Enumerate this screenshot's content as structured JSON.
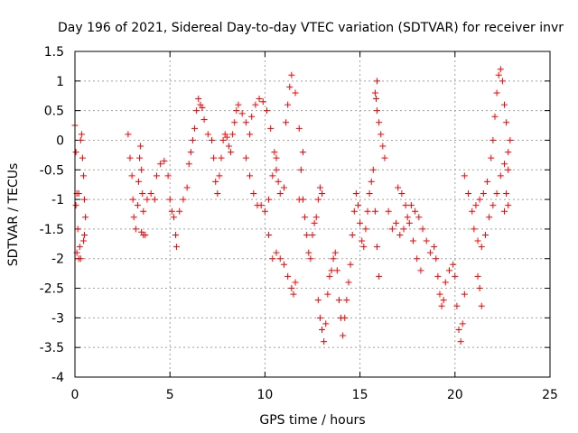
{
  "chart_data": {
    "type": "scatter",
    "title": "Day 196 of 2021, Sidereal Day-to-day VTEC variation (SDTVAR) for receiver invr",
    "xlabel": "GPS time / hours",
    "ylabel": "SDTVAR / TECUs",
    "xlim": [
      0,
      25
    ],
    "ylim": [
      -4,
      1.5
    ],
    "xticks": [
      0,
      5,
      10,
      15,
      20,
      25
    ],
    "yticks": [
      -4,
      -3.5,
      -3,
      -2.5,
      -2,
      -1.5,
      -1,
      -0.5,
      0,
      0.5,
      1,
      1.5
    ],
    "grid": true,
    "marker": "+",
    "color": "#ff0000",
    "series": [
      {
        "points": [
          [
            0.0,
            0.25
          ],
          [
            0.05,
            -0.2
          ],
          [
            0.1,
            -0.9
          ],
          [
            0.15,
            -1.5
          ],
          [
            0.2,
            -2.0
          ],
          [
            0.1,
            -1.9
          ],
          [
            0.05,
            -1.1
          ],
          [
            0.2,
            -0.9
          ],
          [
            0.3,
            0.0
          ],
          [
            0.35,
            0.1
          ],
          [
            0.4,
            -0.3
          ],
          [
            0.45,
            -0.6
          ],
          [
            0.5,
            -1.0
          ],
          [
            0.55,
            -1.3
          ],
          [
            0.5,
            -1.6
          ],
          [
            0.45,
            -1.7
          ],
          [
            0.3,
            -2.0
          ],
          [
            0.25,
            -1.8
          ],
          [
            2.8,
            0.1
          ],
          [
            2.9,
            -0.3
          ],
          [
            3.0,
            -0.6
          ],
          [
            3.05,
            -1.0
          ],
          [
            3.1,
            -1.3
          ],
          [
            3.2,
            -1.5
          ],
          [
            3.3,
            -1.1
          ],
          [
            3.35,
            -0.7
          ],
          [
            3.4,
            -0.3
          ],
          [
            3.45,
            -0.1
          ],
          [
            3.5,
            -0.5
          ],
          [
            3.55,
            -0.9
          ],
          [
            3.6,
            -1.2
          ],
          [
            3.5,
            -1.55
          ],
          [
            3.6,
            -1.6
          ],
          [
            3.7,
            -1.6
          ],
          [
            3.8,
            -1.0
          ],
          [
            4.0,
            -0.9
          ],
          [
            4.2,
            -1.0
          ],
          [
            4.3,
            -0.6
          ],
          [
            4.5,
            -0.4
          ],
          [
            4.7,
            -0.35
          ],
          [
            4.9,
            -0.6
          ],
          [
            5.0,
            -1.0
          ],
          [
            5.1,
            -1.2
          ],
          [
            5.2,
            -1.3
          ],
          [
            5.3,
            -1.6
          ],
          [
            5.35,
            -1.8
          ],
          [
            5.5,
            -1.2
          ],
          [
            5.7,
            -1.0
          ],
          [
            5.9,
            -0.8
          ],
          [
            6.0,
            -0.4
          ],
          [
            6.1,
            -0.2
          ],
          [
            6.2,
            0.0
          ],
          [
            6.3,
            0.2
          ],
          [
            6.4,
            0.5
          ],
          [
            6.5,
            0.7
          ],
          [
            6.6,
            0.6
          ],
          [
            6.7,
            0.55
          ],
          [
            6.8,
            0.35
          ],
          [
            7.0,
            0.1
          ],
          [
            7.2,
            0.0
          ],
          [
            7.3,
            -0.3
          ],
          [
            7.4,
            -0.7
          ],
          [
            7.5,
            -0.9
          ],
          [
            7.6,
            -0.6
          ],
          [
            7.7,
            -0.3
          ],
          [
            7.8,
            0.0
          ],
          [
            7.9,
            0.1
          ],
          [
            8.0,
            0.05
          ],
          [
            8.1,
            -0.1
          ],
          [
            8.2,
            -0.2
          ],
          [
            8.3,
            0.1
          ],
          [
            8.4,
            0.3
          ],
          [
            8.5,
            0.5
          ],
          [
            8.6,
            0.6
          ],
          [
            8.8,
            0.45
          ],
          [
            9.0,
            0.3
          ],
          [
            9.2,
            0.1
          ],
          [
            9.3,
            0.4
          ],
          [
            9.5,
            0.6
          ],
          [
            9.7,
            0.7
          ],
          [
            9.9,
            0.65
          ],
          [
            10.1,
            0.5
          ],
          [
            10.3,
            0.2
          ],
          [
            10.5,
            -0.2
          ],
          [
            10.6,
            -0.5
          ],
          [
            10.7,
            -0.7
          ],
          [
            10.8,
            -0.9
          ],
          [
            11.0,
            -0.8
          ],
          [
            11.1,
            0.3
          ],
          [
            11.2,
            0.6
          ],
          [
            11.3,
            0.9
          ],
          [
            11.4,
            1.1
          ],
          [
            11.6,
            0.8
          ],
          [
            11.8,
            0.2
          ],
          [
            12.0,
            -0.2
          ],
          [
            11.9,
            -0.5
          ],
          [
            11.8,
            -1.0
          ],
          [
            9.0,
            -0.3
          ],
          [
            9.2,
            -0.6
          ],
          [
            9.4,
            -0.9
          ],
          [
            9.6,
            -1.1
          ],
          [
            9.8,
            -1.1
          ],
          [
            10.0,
            -1.2
          ],
          [
            10.2,
            -1.0
          ],
          [
            10.4,
            -0.6
          ],
          [
            10.6,
            -0.3
          ],
          [
            10.2,
            -1.6
          ],
          [
            10.4,
            -2.0
          ],
          [
            10.6,
            -1.9
          ],
          [
            10.8,
            -2.0
          ],
          [
            11.0,
            -2.1
          ],
          [
            11.2,
            -2.3
          ],
          [
            11.4,
            -2.5
          ],
          [
            11.5,
            -2.6
          ],
          [
            11.6,
            -2.4
          ],
          [
            12.0,
            -1.0
          ],
          [
            12.1,
            -1.3
          ],
          [
            12.2,
            -1.6
          ],
          [
            12.3,
            -1.9
          ],
          [
            12.4,
            -2.0
          ],
          [
            12.5,
            -1.6
          ],
          [
            12.6,
            -1.4
          ],
          [
            12.7,
            -1.3
          ],
          [
            12.8,
            -1.0
          ],
          [
            12.9,
            -0.8
          ],
          [
            13.0,
            -0.9
          ],
          [
            12.8,
            -2.7
          ],
          [
            12.9,
            -3.0
          ],
          [
            13.0,
            -3.2
          ],
          [
            13.1,
            -3.4
          ],
          [
            13.2,
            -3.1
          ],
          [
            13.3,
            -2.6
          ],
          [
            13.4,
            -2.3
          ],
          [
            13.5,
            -2.2
          ],
          [
            13.6,
            -2.0
          ],
          [
            13.7,
            -1.9
          ],
          [
            13.8,
            -2.2
          ],
          [
            13.9,
            -2.7
          ],
          [
            14.0,
            -3.0
          ],
          [
            14.1,
            -3.3
          ],
          [
            14.2,
            -3.0
          ],
          [
            14.3,
            -2.7
          ],
          [
            14.4,
            -2.4
          ],
          [
            14.5,
            -2.1
          ],
          [
            14.6,
            -1.6
          ],
          [
            14.7,
            -1.2
          ],
          [
            14.8,
            -0.9
          ],
          [
            14.9,
            -1.1
          ],
          [
            15.0,
            -1.4
          ],
          [
            15.1,
            -1.7
          ],
          [
            15.2,
            -1.8
          ],
          [
            15.3,
            -1.5
          ],
          [
            15.4,
            -1.2
          ],
          [
            15.5,
            -0.9
          ],
          [
            15.6,
            -0.7
          ],
          [
            15.7,
            -0.5
          ],
          [
            15.8,
            -1.2
          ],
          [
            15.9,
            -1.8
          ],
          [
            16.0,
            -2.3
          ],
          [
            15.8,
            0.8
          ],
          [
            15.9,
            0.5
          ],
          [
            16.0,
            0.3
          ],
          [
            16.1,
            0.1
          ],
          [
            16.2,
            -0.1
          ],
          [
            16.3,
            -0.3
          ],
          [
            15.9,
            1.0
          ],
          [
            15.85,
            0.7
          ],
          [
            16.5,
            -1.2
          ],
          [
            16.7,
            -1.5
          ],
          [
            16.9,
            -1.4
          ],
          [
            17.1,
            -1.6
          ],
          [
            17.3,
            -1.5
          ],
          [
            17.5,
            -1.3
          ],
          [
            17.7,
            -1.1
          ],
          [
            17.9,
            -1.2
          ],
          [
            18.1,
            -1.3
          ],
          [
            18.3,
            -1.5
          ],
          [
            18.5,
            -1.7
          ],
          [
            18.7,
            -1.9
          ],
          [
            17.0,
            -0.8
          ],
          [
            17.2,
            -0.9
          ],
          [
            17.4,
            -1.1
          ],
          [
            17.6,
            -1.4
          ],
          [
            17.8,
            -1.7
          ],
          [
            18.0,
            -2.0
          ],
          [
            18.2,
            -2.2
          ],
          [
            18.9,
            -1.8
          ],
          [
            19.0,
            -2.0
          ],
          [
            19.1,
            -2.3
          ],
          [
            19.2,
            -2.6
          ],
          [
            19.3,
            -2.8
          ],
          [
            19.4,
            -2.7
          ],
          [
            19.5,
            -2.4
          ],
          [
            19.7,
            -2.2
          ],
          [
            19.9,
            -2.1
          ],
          [
            20.0,
            -2.3
          ],
          [
            20.1,
            -2.8
          ],
          [
            20.2,
            -3.2
          ],
          [
            20.3,
            -3.4
          ],
          [
            20.4,
            -3.1
          ],
          [
            20.5,
            -2.6
          ],
          [
            20.5,
            -0.6
          ],
          [
            20.7,
            -0.9
          ],
          [
            20.9,
            -1.2
          ],
          [
            21.1,
            -1.1
          ],
          [
            21.3,
            -1.0
          ],
          [
            21.5,
            -0.9
          ],
          [
            21.7,
            -0.7
          ],
          [
            21.9,
            -0.3
          ],
          [
            22.0,
            0.0
          ],
          [
            22.1,
            0.4
          ],
          [
            22.2,
            0.8
          ],
          [
            22.3,
            1.1
          ],
          [
            22.4,
            1.2
          ],
          [
            22.5,
            1.0
          ],
          [
            22.6,
            0.6
          ],
          [
            22.7,
            0.3
          ],
          [
            21.0,
            -1.5
          ],
          [
            21.2,
            -1.7
          ],
          [
            21.4,
            -1.8
          ],
          [
            21.6,
            -1.6
          ],
          [
            21.8,
            -1.3
          ],
          [
            22.0,
            -1.1
          ],
          [
            22.2,
            -0.9
          ],
          [
            22.4,
            -0.6
          ],
          [
            22.6,
            -0.4
          ],
          [
            22.8,
            -0.2
          ],
          [
            22.9,
            0.0
          ],
          [
            22.8,
            -0.5
          ],
          [
            22.7,
            -0.9
          ],
          [
            22.6,
            -1.2
          ],
          [
            22.8,
            -1.1
          ],
          [
            21.3,
            -2.5
          ],
          [
            21.4,
            -2.8
          ],
          [
            21.2,
            -2.3
          ]
        ]
      }
    ]
  }
}
